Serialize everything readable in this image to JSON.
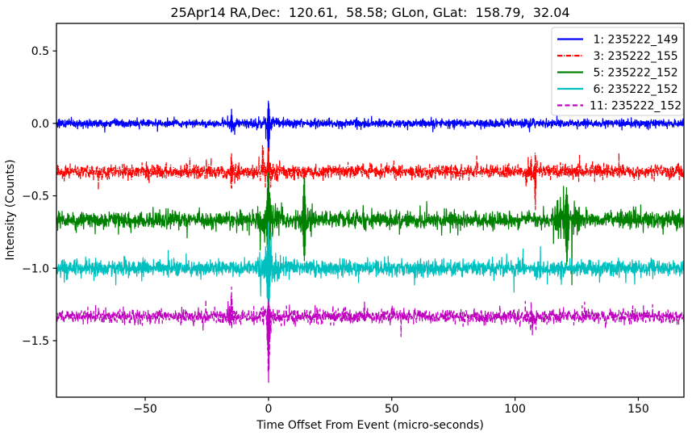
{
  "chart_data": {
    "type": "line",
    "title": "25Apr14 RA,Dec:  120.61,  58.58; GLon, GLat:  158.79,  32.04",
    "xlabel": "Time Offset From Event (micro-seconds)",
    "ylabel": "Intensity (Counts)",
    "xlim": [
      -86,
      168.5
    ],
    "ylim": [
      -1.89,
      0.69
    ],
    "xticks": [
      -50,
      0,
      50,
      100,
      150
    ],
    "yticks": [
      0.5,
      0.0,
      -0.5,
      -1.0,
      -1.5
    ],
    "grid": false,
    "legend_position": "upper right",
    "background": "#ffffff",
    "axis_color": "#000000",
    "legend_border_color": "#cccccc",
    "n_points": 2560,
    "series": [
      {
        "legend_label": " 1: 235222_149",
        "color": "#0000ff",
        "linestyle": "solid",
        "offset": 0.0,
        "noise_sigma": 0.013,
        "seed": 101,
        "spikes": [
          {
            "t": -15,
            "up": 0.1,
            "down": 0.06,
            "w": 0.5,
            "swell": 1.2
          },
          {
            "t": 0,
            "up": 0.155,
            "down": 0.27,
            "w": 0.7,
            "swell": 1.5
          }
        ]
      },
      {
        "legend_label": " 3: 235222_155",
        "color": "#ff0000",
        "linestyle": "dashdot",
        "offset": -0.333,
        "noise_sigma": 0.022,
        "seed": 202,
        "spikes": [
          {
            "t": -15,
            "up": 0.12,
            "down": 0.14,
            "w": 0.5,
            "swell": 1.3
          },
          {
            "t": 0,
            "up": 0.17,
            "down": 0.13,
            "w": 0.8,
            "swell": 1.5
          },
          {
            "t": 106.5,
            "up": 0.13,
            "down": 0.05,
            "w": 0.5,
            "swell": 1.2
          },
          {
            "t": 108.2,
            "up": 0.14,
            "down": 0.3,
            "w": 0.4,
            "swell": 1.0
          }
        ]
      },
      {
        "legend_label": " 5: 235222_152",
        "color": "#008000",
        "linestyle": "solid",
        "offset": -0.667,
        "noise_sigma": 0.026,
        "seed": 303,
        "spikes": [
          {
            "t": 0,
            "up": 0.34,
            "down": 0.38,
            "w": 1.1,
            "swell": 2.0
          },
          {
            "t": 14.5,
            "up": 0.3,
            "down": 0.3,
            "w": 0.9,
            "swell": 1.6
          },
          {
            "t": 121,
            "up": 0.23,
            "down": 0.32,
            "w": 1.1,
            "swell": 2.5
          }
        ]
      },
      {
        "legend_label": " 6: 235222_152",
        "color": "#00bfbf",
        "linestyle": "solid",
        "offset": -1.0,
        "noise_sigma": 0.026,
        "seed": 404,
        "spikes": [
          {
            "t": 0,
            "up": 0.31,
            "down": 0.36,
            "w": 1.0,
            "swell": 1.8
          }
        ]
      },
      {
        "legend_label": "11: 235222_152",
        "color": "#bf00bf",
        "linestyle": "dashed",
        "offset": -1.333,
        "noise_sigma": 0.022,
        "seed": 505,
        "spikes": [
          {
            "t": -15,
            "up": 0.22,
            "down": 0.1,
            "w": 0.5,
            "swell": 1.3
          },
          {
            "t": 0,
            "up": 0.12,
            "down": 0.47,
            "w": 0.9,
            "swell": 1.5
          },
          {
            "t": 107,
            "up": 0.05,
            "down": 0.14,
            "w": 0.4,
            "swell": 1.0
          }
        ]
      }
    ]
  }
}
